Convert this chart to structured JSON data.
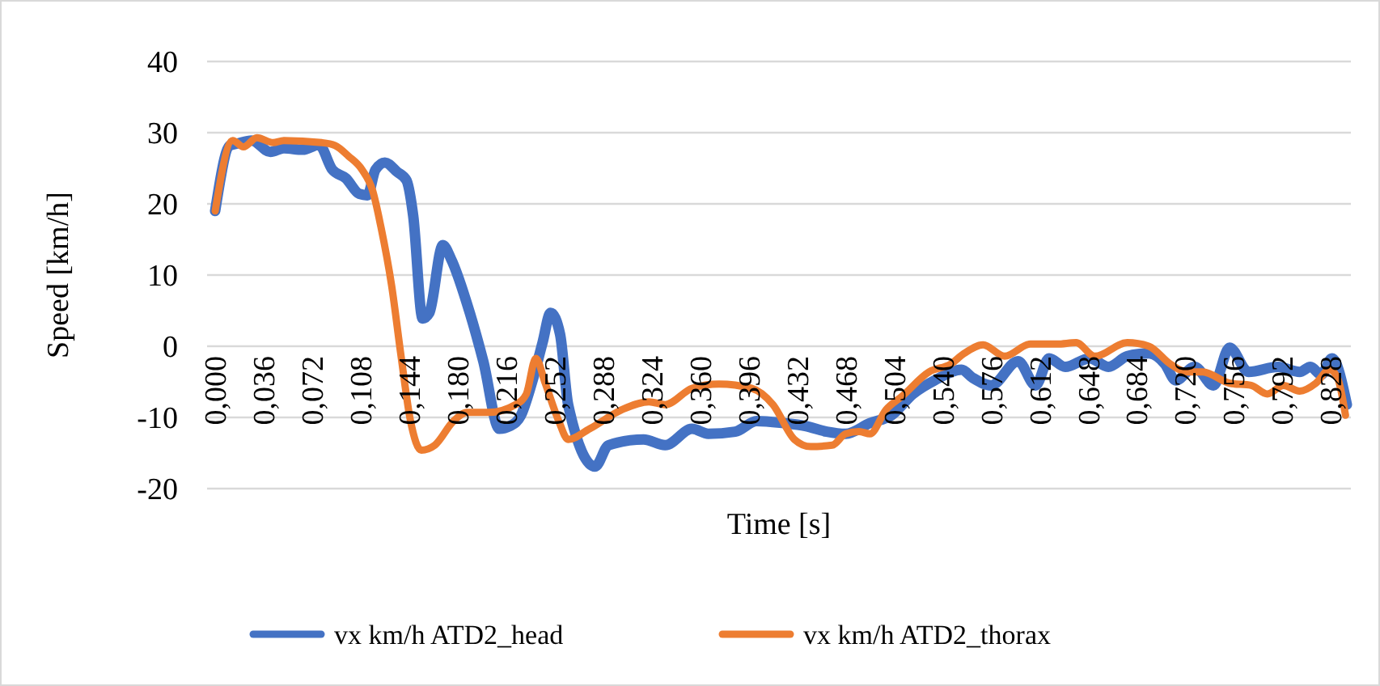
{
  "chart_data": {
    "type": "line",
    "xlabel": "Time [s]",
    "ylabel": "Speed [km/h]",
    "xlim": [
      -0.006,
      0.843
    ],
    "ylim": [
      -20,
      40
    ],
    "yticks": [
      -20,
      -10,
      0,
      10,
      20,
      30,
      40
    ],
    "xticks": [
      {
        "value": 0,
        "label": "0,000"
      },
      {
        "value": 0.036,
        "label": "0,036"
      },
      {
        "value": 0.072,
        "label": "0,072"
      },
      {
        "value": 0.108,
        "label": "0,108"
      },
      {
        "value": 0.144,
        "label": "0,144"
      },
      {
        "value": 0.18,
        "label": "0,180"
      },
      {
        "value": 0.216,
        "label": "0,216"
      },
      {
        "value": 0.252,
        "label": "0,252"
      },
      {
        "value": 0.288,
        "label": "0,288"
      },
      {
        "value": 0.324,
        "label": "0,324"
      },
      {
        "value": 0.36,
        "label": "0,360"
      },
      {
        "value": 0.396,
        "label": "0,396"
      },
      {
        "value": 0.432,
        "label": "0,432"
      },
      {
        "value": 0.468,
        "label": "0,468"
      },
      {
        "value": 0.504,
        "label": "0,504"
      },
      {
        "value": 0.54,
        "label": "0,540"
      },
      {
        "value": 0.576,
        "label": "0,576"
      },
      {
        "value": 0.612,
        "label": "0,612"
      },
      {
        "value": 0.648,
        "label": "0,648"
      },
      {
        "value": 0.684,
        "label": "0,684"
      },
      {
        "value": 0.72,
        "label": "0,720"
      },
      {
        "value": 0.756,
        "label": "0,756"
      },
      {
        "value": 0.792,
        "label": "0,792"
      },
      {
        "value": 0.828,
        "label": "0,828"
      }
    ],
    "grid": "y",
    "legend": "bottom",
    "marker": "none",
    "line_style": "solid",
    "series": [
      {
        "name": "vx km/h ATD2_head",
        "color": "#4472c4",
        "x": [
          0,
          0.011,
          0.017,
          0.027,
          0.041,
          0.051,
          0.065,
          0.077,
          0.087,
          0.097,
          0.107,
          0.113,
          0.119,
          0.126,
          0.135,
          0.142,
          0.147,
          0.154,
          0.159,
          0.169,
          0.175,
          0.189,
          0.199,
          0.211,
          0.219,
          0.227,
          0.235,
          0.243,
          0.249,
          0.256,
          0.262,
          0.282,
          0.292,
          0.318,
          0.334,
          0.354,
          0.366,
          0.386,
          0.402,
          0.422,
          0.438,
          0.454,
          0.468,
          0.486,
          0.502,
          0.518,
          0.534,
          0.554,
          0.562,
          0.576,
          0.596,
          0.609,
          0.619,
          0.631,
          0.649,
          0.663,
          0.677,
          0.693,
          0.705,
          0.713,
          0.727,
          0.741,
          0.753,
          0.767,
          0.789,
          0.805,
          0.813,
          0.821,
          0.829,
          0.84
        ],
        "values": [
          19,
          28.2,
          28.5,
          28.9,
          27.3,
          27.8,
          27.6,
          28.3,
          24.8,
          23.6,
          21.4,
          21.2,
          24.8,
          25.8,
          24.5,
          23.3,
          18.3,
          3.9,
          4.7,
          14.2,
          12.3,
          4.7,
          -2.1,
          -11.6,
          -11.2,
          -9.7,
          -5.2,
          0.5,
          4.7,
          1.7,
          -8.2,
          -16.9,
          -13.9,
          -13.1,
          -13.9,
          -11.6,
          -12.3,
          -12,
          -10.5,
          -10.8,
          -11.2,
          -12,
          -12.3,
          -10.8,
          -9.7,
          -6.7,
          -4.8,
          -3.3,
          -4.4,
          -5.5,
          -2.1,
          -5.5,
          -1.7,
          -2.9,
          -1.7,
          -2.9,
          -1.4,
          -1,
          -2.5,
          -4.8,
          -2.9,
          -5.5,
          -0.2,
          -3.6,
          -2.9,
          -3.6,
          -2.9,
          -4,
          -1.7,
          -8.2
        ]
      },
      {
        "name": "vx km/h ATD2_thorax",
        "color": "#ed7d31",
        "x": [
          0,
          0.013,
          0.021,
          0.031,
          0.043,
          0.051,
          0.079,
          0.089,
          0.099,
          0.109,
          0.117,
          0.123,
          0.131,
          0.138,
          0.145,
          0.153,
          0.163,
          0.177,
          0.187,
          0.203,
          0.223,
          0.231,
          0.238,
          0.245,
          0.255,
          0.262,
          0.278,
          0.302,
          0.322,
          0.334,
          0.354,
          0.374,
          0.398,
          0.414,
          0.43,
          0.442,
          0.458,
          0.468,
          0.478,
          0.486,
          0.498,
          0.51,
          0.53,
          0.546,
          0.556,
          0.57,
          0.586,
          0.605,
          0.625,
          0.639,
          0.653,
          0.677,
          0.693,
          0.709,
          0.721,
          0.733,
          0.753,
          0.769,
          0.781,
          0.793,
          0.805,
          0.817,
          0.827,
          0.833,
          0.839
        ],
        "values": [
          19,
          28.9,
          28,
          29.3,
          28.6,
          28.9,
          28.6,
          28.2,
          26.7,
          24.8,
          21.8,
          16.8,
          8.5,
          -1.4,
          -10.5,
          -14.6,
          -13.9,
          -10.5,
          -9.3,
          -9.3,
          -8.2,
          -6.7,
          -1.7,
          -5.2,
          -10.5,
          -13.1,
          -11.6,
          -8.9,
          -7.8,
          -8.2,
          -5.9,
          -5.3,
          -5.9,
          -8.2,
          -13.1,
          -14.1,
          -13.9,
          -12.3,
          -12,
          -12.3,
          -8.9,
          -7,
          -3.6,
          -2.5,
          -1,
          0.2,
          -1.4,
          0.3,
          0.3,
          0.5,
          -1.4,
          0.5,
          0,
          -2.5,
          -3.6,
          -3.6,
          -5.2,
          -5.5,
          -6.7,
          -5.5,
          -6.3,
          -5.2,
          -3.3,
          -4.4,
          -9.7
        ]
      }
    ]
  }
}
